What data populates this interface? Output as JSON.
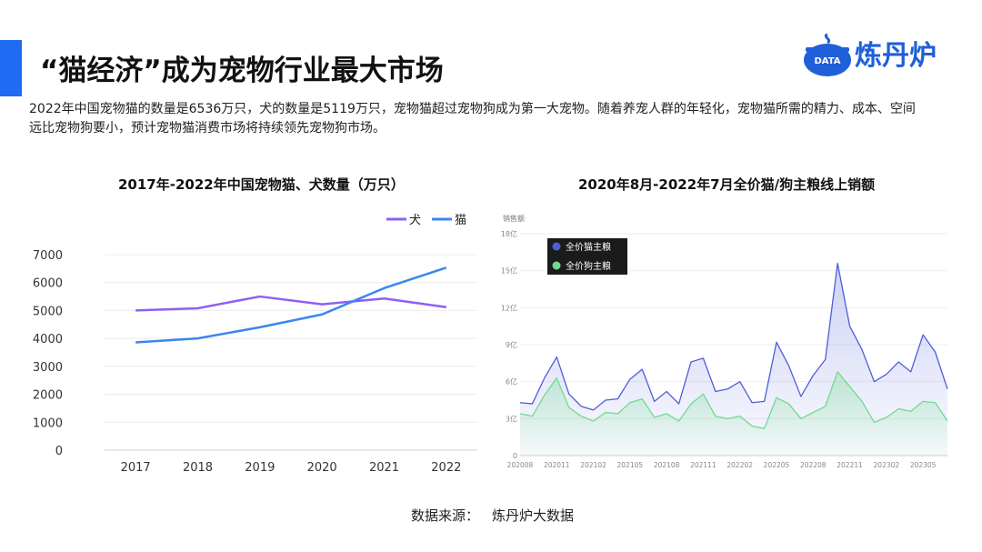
{
  "page": {
    "title": "“猫经济”成为宠物行业最大市场",
    "description": "2022年中国宠物猫的数量是6536万只，犬的数量是5119万只，宠物猫超过宠物狗成为第一大宠物。随着养宠人群的年轻化，宠物猫所需的精力、成本、空间远比宠物狗要小，预计宠物猫消费市场将持续领先宠物狗市场。",
    "logo_badge": "DATA",
    "logo_text": "炼丹炉",
    "source_label": "数据来源：",
    "source_value": "炼丹炉大数据"
  },
  "colors": {
    "accent": "#1f6bf2",
    "dog_line": "#8f5ff2",
    "cat_line": "#3a86f0",
    "cat_food": "#4e5ed8",
    "dog_food": "#6fdc8c"
  },
  "chart_data": [
    {
      "type": "line",
      "title": "2017年-2022年中国宠物猫、犬数量（万只）",
      "categories": [
        "2017",
        "2018",
        "2019",
        "2020",
        "2021",
        "2022"
      ],
      "series": [
        {
          "name": "犬",
          "values": [
            5000,
            5080,
            5500,
            5220,
            5430,
            5119
          ]
        },
        {
          "name": "猫",
          "values": [
            3860,
            4000,
            4400,
            4860,
            5800,
            6536
          ]
        }
      ],
      "ylim": [
        0,
        7000
      ],
      "yticks": [
        "0",
        "1000",
        "2000",
        "3000",
        "4000",
        "5000",
        "6000",
        "7000"
      ],
      "grid": true,
      "legend": "top-right"
    },
    {
      "type": "area",
      "title": "2020年8月-2022年7月全价猫/狗主粮线上销额",
      "ylabel": "销售额",
      "yticks": [
        "0",
        "3亿",
        "6亿",
        "9亿",
        "12亿",
        "15亿",
        "18亿"
      ],
      "ylim": [
        0,
        18
      ],
      "xticks": [
        "202008",
        "202011",
        "202102",
        "202105",
        "202108",
        "202111",
        "202202",
        "202205",
        "202208",
        "202211",
        "202302",
        "202305"
      ],
      "legend": "top-left",
      "series": [
        {
          "name": "全价猫主粮",
          "values": [
            4.3,
            4.2,
            6.3,
            8.0,
            5.0,
            4.0,
            3.7,
            4.5,
            4.6,
            6.2,
            7.0,
            4.4,
            5.2,
            4.2,
            7.6,
            7.9,
            5.2,
            5.4,
            6.0,
            4.3,
            4.4,
            9.2,
            7.3,
            4.8,
            6.5,
            7.8,
            15.6,
            10.5,
            8.6,
            6.0,
            6.6,
            7.6,
            6.8,
            9.8,
            8.4,
            5.4
          ]
        },
        {
          "name": "全价狗主粮",
          "values": [
            3.4,
            3.2,
            4.9,
            6.3,
            3.9,
            3.2,
            2.8,
            3.5,
            3.4,
            4.3,
            4.6,
            3.1,
            3.4,
            2.8,
            4.2,
            5.0,
            3.2,
            3.0,
            3.2,
            2.4,
            2.2,
            4.7,
            4.2,
            3.0,
            3.5,
            4.0,
            6.8,
            5.6,
            4.4,
            2.7,
            3.1,
            3.8,
            3.6,
            4.4,
            4.3,
            2.8
          ]
        }
      ]
    }
  ]
}
